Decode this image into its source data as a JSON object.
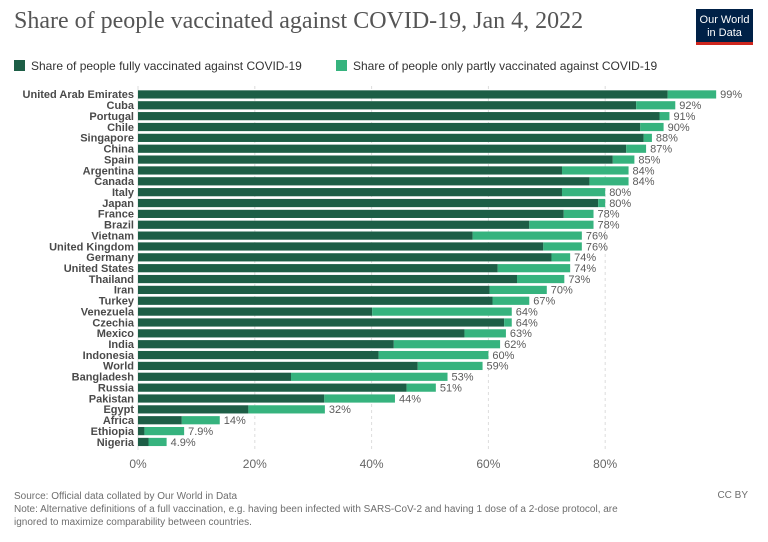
{
  "title": "Share of people vaccinated against COVID-19, Jan 4, 2022",
  "logo": {
    "line1": "Our World",
    "line2": "in Data"
  },
  "colors": {
    "full": "#1d5e46",
    "partial": "#36b37e",
    "grid": "#dddddd"
  },
  "source": "Source: Official data collated by Our World in Data",
  "note_line1": "Note: Alternative definitions of a full vaccination, e.g. having been infected with SARS-CoV-2 and having 1 dose of a 2-dose protocol, are",
  "note_line2": "ignored to maximize comparability between countries.",
  "license": "CC BY",
  "chart_data": {
    "type": "bar",
    "orientation": "horizontal",
    "stacked": true,
    "xlim": [
      0,
      100
    ],
    "x_ticks": [
      0,
      20,
      40,
      60,
      80
    ],
    "x_tick_labels": [
      "0%",
      "20%",
      "40%",
      "60%",
      "80%"
    ],
    "grid": true,
    "legend_position": "top",
    "categories": [
      "United Arab Emirates",
      "Cuba",
      "Portugal",
      "Chile",
      "Singapore",
      "China",
      "Spain",
      "Argentina",
      "Canada",
      "Italy",
      "Japan",
      "France",
      "Brazil",
      "Vietnam",
      "United Kingdom",
      "Germany",
      "United States",
      "Thailand",
      "Iran",
      "Turkey",
      "Venezuela",
      "Czechia",
      "Mexico",
      "India",
      "Indonesia",
      "World",
      "Bangladesh",
      "Russia",
      "Pakistan",
      "Egypt",
      "Africa",
      "Ethiopia",
      "Nigeria"
    ],
    "series": [
      {
        "name": "Share of people fully vaccinated against COVID-19",
        "values": [
          90.7,
          85.3,
          89.3,
          86.0,
          86.6,
          83.6,
          81.3,
          72.6,
          77.3,
          72.6,
          78.8,
          72.9,
          67.0,
          57.3,
          69.4,
          70.8,
          61.6,
          64.9,
          60.2,
          60.7,
          40.1,
          62.7,
          55.9,
          43.8,
          41.2,
          47.9,
          26.2,
          46.0,
          31.9,
          18.9,
          7.5,
          1.1,
          1.8
        ]
      },
      {
        "name": "Share of people only partly vaccinated against COVID-19",
        "values": [
          8.3,
          6.7,
          1.7,
          4.0,
          1.4,
          3.4,
          3.7,
          11.4,
          6.7,
          7.4,
          1.2,
          5.1,
          11.0,
          18.7,
          6.6,
          3.2,
          12.4,
          8.1,
          9.8,
          6.3,
          23.9,
          1.3,
          7.1,
          18.2,
          18.8,
          11.1,
          26.8,
          5.0,
          12.1,
          13.1,
          6.5,
          6.8,
          3.1
        ]
      }
    ],
    "data_labels": [
      "99%",
      "92%",
      "91%",
      "90%",
      "88%",
      "87%",
      "85%",
      "84%",
      "84%",
      "80%",
      "80%",
      "78%",
      "78%",
      "76%",
      "76%",
      "74%",
      "74%",
      "73%",
      "70%",
      "67%",
      "64%",
      "64%",
      "63%",
      "62%",
      "60%",
      "59%",
      "53%",
      "51%",
      "44%",
      "32%",
      "14%",
      "7.9%",
      "4.9%"
    ]
  }
}
